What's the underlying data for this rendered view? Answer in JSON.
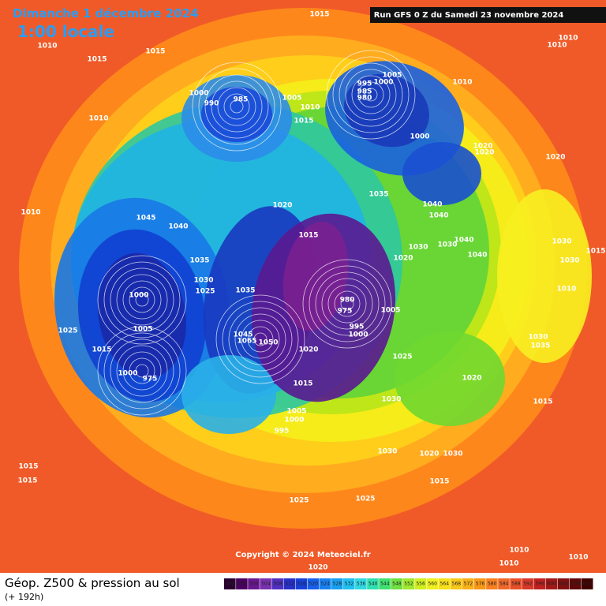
{
  "header": {
    "date": "Dimanche 1 décembre 2024",
    "time": "1:00 locale",
    "run": "Run GFS 0 Z du Samedi 23 novembre 2024"
  },
  "map": {
    "pressure_labels": [
      "1015",
      "1010",
      "1015",
      "1015",
      "1010",
      "1000",
      "990",
      "985",
      "1005",
      "1010",
      "1015",
      "1005",
      "1000",
      "995",
      "985",
      "980",
      "1010",
      "1010",
      "1010",
      "1000",
      "1020",
      "1020",
      "1020",
      "1035",
      "1020",
      "1045",
      "1040",
      "1040",
      "1040",
      "1015",
      "1030",
      "1030",
      "1040",
      "1020",
      "1040",
      "1030",
      "1030",
      "1015",
      "1035",
      "1030",
      "1025",
      "1035",
      "1010",
      "1000",
      "980",
      "975",
      "1005",
      "1005",
      "1045",
      "1065",
      "1050",
      "1025",
      "1015",
      "1000",
      "975",
      "1020",
      "1025",
      "1030",
      "1035",
      "1020",
      "1015",
      "1030",
      "1015",
      "1005",
      "1000",
      "995",
      "1030",
      "1020",
      "1030",
      "1015",
      "1025",
      "1025",
      "1015",
      "1015",
      "1010",
      "1010",
      "1010",
      "1010",
      "1020",
      "995",
      "1000"
    ],
    "copyright": "Copyright © 2024 Meteociel.fr"
  },
  "footer": {
    "title": "Géop. Z500 & pression au sol",
    "lead": "(+ 192h)",
    "scale": [
      "492",
      "496",
      "500",
      "504",
      "508",
      "512",
      "516",
      "520",
      "524",
      "528",
      "532",
      "536",
      "540",
      "544",
      "548",
      "552",
      "556",
      "560",
      "564",
      "568",
      "572",
      "576",
      "580",
      "584",
      "588",
      "592",
      "596",
      "600",
      "604",
      "608",
      "612"
    ]
  }
}
